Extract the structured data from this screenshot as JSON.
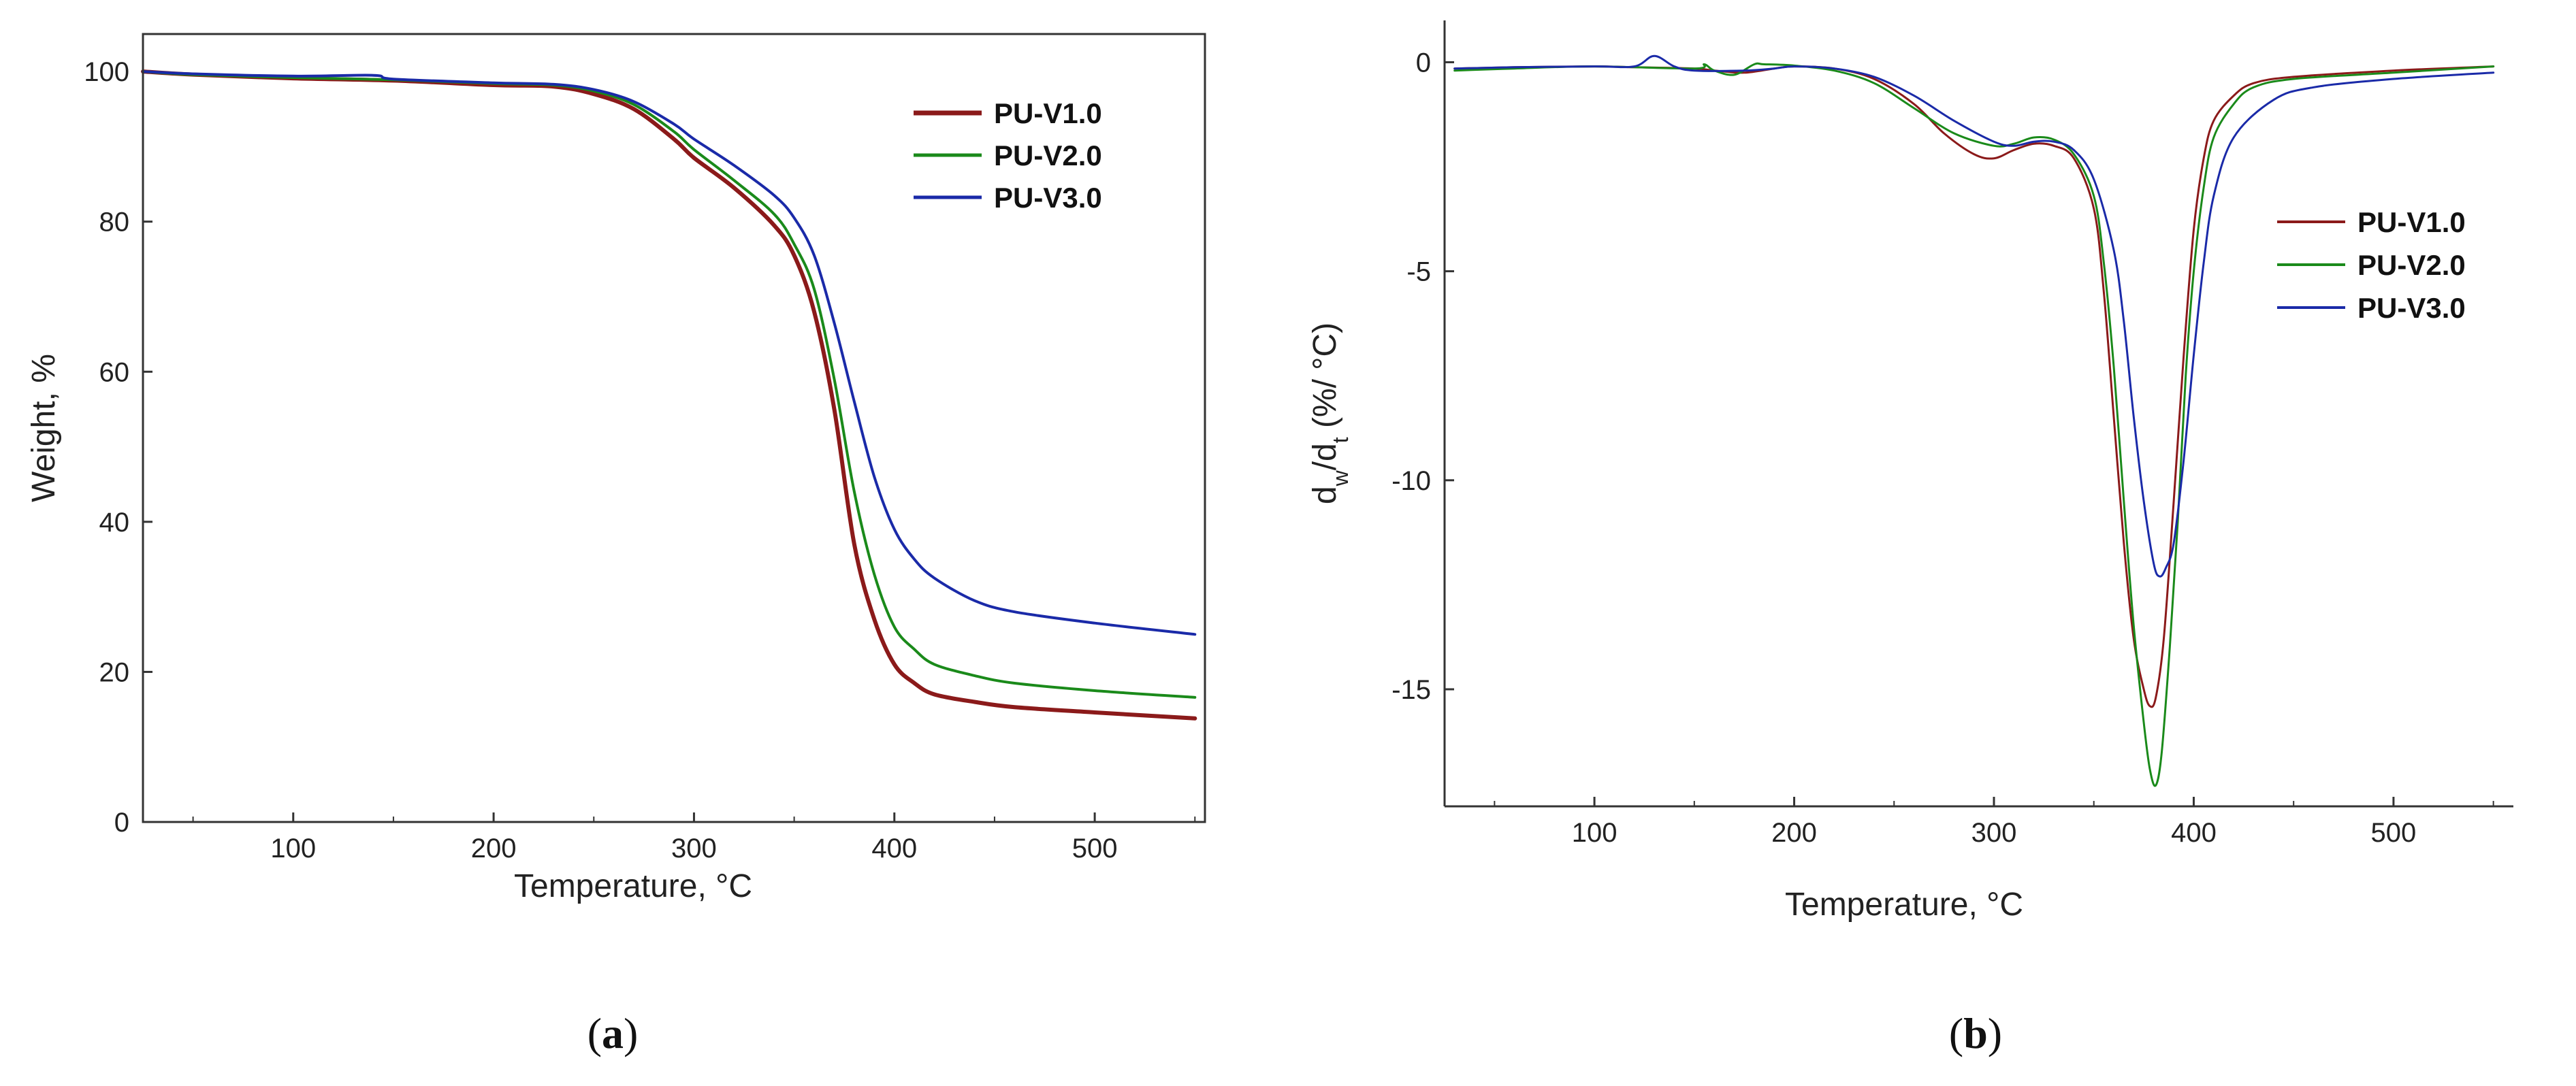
{
  "chart_data": [
    {
      "id": "a",
      "type": "line",
      "panel_caption": "(a)",
      "caption_letter": "a",
      "xlabel": "Temperature, °C",
      "ylabel": "Weight, %",
      "xlim": [
        25,
        555
      ],
      "ylim": [
        0,
        105
      ],
      "xticks": [
        100,
        200,
        300,
        400,
        500
      ],
      "yticks": [
        0,
        20,
        40,
        60,
        80,
        100
      ],
      "legend_position": "top-right",
      "series": [
        {
          "name": "PU-V1.0",
          "color": "#8b1a1a",
          "width": 6,
          "x": [
            25,
            50,
            100,
            150,
            200,
            230,
            250,
            270,
            290,
            300,
            320,
            340,
            350,
            360,
            370,
            380,
            390,
            400,
            410,
            420,
            440,
            460,
            500,
            550
          ],
          "y": [
            100,
            99.6,
            99.1,
            98.8,
            98.2,
            98.0,
            97.0,
            95.0,
            91.0,
            88.5,
            84.5,
            79.5,
            75.5,
            68,
            55,
            37,
            27,
            21,
            18.5,
            17,
            16,
            15.3,
            14.6,
            13.8
          ]
        },
        {
          "name": "PU-V2.0",
          "color": "#1a8a1a",
          "width": 4,
          "x": [
            25,
            50,
            100,
            150,
            200,
            230,
            250,
            270,
            290,
            300,
            320,
            340,
            350,
            360,
            370,
            380,
            390,
            400,
            410,
            420,
            440,
            460,
            500,
            550
          ],
          "y": [
            100,
            99.6,
            99.2,
            98.9,
            98.4,
            98.2,
            97.4,
            95.6,
            92.0,
            89.6,
            85.5,
            81.0,
            77.0,
            71,
            59,
            44,
            33,
            26,
            23,
            21,
            19.5,
            18.5,
            17.5,
            16.6
          ]
        },
        {
          "name": "PU-V3.0",
          "color": "#1a2aa8",
          "width": 4,
          "x": [
            25,
            50,
            100,
            140,
            150,
            200,
            230,
            250,
            270,
            290,
            300,
            320,
            340,
            350,
            360,
            370,
            380,
            390,
            400,
            410,
            420,
            440,
            460,
            500,
            550
          ],
          "y": [
            100,
            99.7,
            99.4,
            99.5,
            99.0,
            98.5,
            98.3,
            97.6,
            96.0,
            93.0,
            91.0,
            87.5,
            83.5,
            80.5,
            75.5,
            66.5,
            56,
            46,
            39,
            35,
            32.5,
            29.5,
            28.0,
            26.5,
            25.0
          ]
        }
      ]
    },
    {
      "id": "b",
      "type": "line",
      "panel_caption": "(b)",
      "caption_letter": "b",
      "xlabel": "Temperature, °C",
      "ylabel": "dw/dt (%/ °C)",
      "ylabel_parts": {
        "d1": "d",
        "sub_w": "w",
        "slash": "/d",
        "sub_t": "t",
        "unit": " (%/ °C)"
      },
      "xlim": [
        25,
        560
      ],
      "ylim": [
        -17.8,
        1.0
      ],
      "xticks": [
        100,
        200,
        300,
        400,
        500
      ],
      "yticks": [
        0,
        -5,
        -10,
        -15
      ],
      "legend_position": "right",
      "series": [
        {
          "name": "PU-V1.0",
          "color": "#8b1a1a",
          "width": 3,
          "x": [
            30,
            60,
            100,
            120,
            150,
            160,
            175,
            190,
            200,
            220,
            240,
            260,
            275,
            290,
            300,
            310,
            320,
            330,
            340,
            350,
            355,
            360,
            365,
            370,
            375,
            378,
            381,
            385,
            390,
            395,
            400,
            405,
            410,
            420,
            430,
            450,
            500,
            550
          ],
          "y": [
            -0.15,
            -0.12,
            -0.1,
            -0.12,
            -0.15,
            -0.2,
            -0.25,
            -0.15,
            -0.1,
            -0.15,
            -0.4,
            -1.0,
            -1.7,
            -2.2,
            -2.3,
            -2.1,
            -1.95,
            -2.0,
            -2.3,
            -3.5,
            -5.5,
            -8.5,
            -11.5,
            -13.8,
            -15.0,
            -15.4,
            -15.2,
            -13.8,
            -10.5,
            -7.0,
            -4.0,
            -2.3,
            -1.4,
            -0.8,
            -0.5,
            -0.35,
            -0.2,
            -0.1
          ]
        },
        {
          "name": "PU-V2.0",
          "color": "#1a8a1a",
          "width": 3,
          "x": [
            30,
            60,
            100,
            150,
            155,
            160,
            170,
            180,
            185,
            200,
            220,
            240,
            260,
            280,
            300,
            310,
            320,
            330,
            340,
            350,
            355,
            360,
            365,
            370,
            375,
            378,
            381,
            384,
            388,
            392,
            396,
            400,
            405,
            410,
            420,
            430,
            450,
            500,
            550
          ],
          "y": [
            -0.2,
            -0.15,
            -0.1,
            -0.15,
            -0.05,
            -0.2,
            -0.3,
            -0.05,
            -0.05,
            -0.08,
            -0.2,
            -0.5,
            -1.1,
            -1.7,
            -2.0,
            -1.95,
            -1.8,
            -1.85,
            -2.2,
            -3.2,
            -4.8,
            -7.3,
            -10.5,
            -13.5,
            -15.8,
            -16.9,
            -17.3,
            -16.5,
            -14.0,
            -11.0,
            -7.5,
            -5.0,
            -3.0,
            -1.8,
            -1.0,
            -0.6,
            -0.4,
            -0.25,
            -0.1
          ]
        },
        {
          "name": "PU-V3.0",
          "color": "#1a2aa8",
          "width": 3,
          "x": [
            30,
            60,
            100,
            120,
            130,
            140,
            150,
            175,
            190,
            200,
            220,
            240,
            260,
            280,
            300,
            310,
            320,
            330,
            340,
            350,
            360,
            365,
            370,
            375,
            380,
            383,
            386,
            390,
            395,
            400,
            405,
            410,
            420,
            440,
            460,
            500,
            550
          ],
          "y": [
            -0.15,
            -0.12,
            -0.1,
            -0.1,
            0.15,
            -0.1,
            -0.2,
            -0.2,
            -0.15,
            -0.1,
            -0.15,
            -0.35,
            -0.8,
            -1.4,
            -1.9,
            -2.0,
            -1.9,
            -1.9,
            -2.1,
            -2.8,
            -4.5,
            -6.2,
            -8.5,
            -10.5,
            -12.0,
            -12.3,
            -12.1,
            -11.5,
            -9.5,
            -7.0,
            -4.8,
            -3.2,
            -1.8,
            -0.9,
            -0.6,
            -0.4,
            -0.25
          ]
        }
      ]
    }
  ]
}
